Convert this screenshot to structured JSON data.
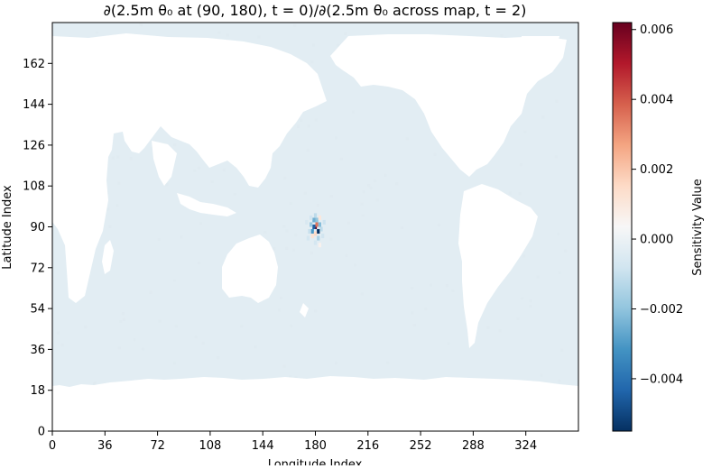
{
  "chart_data": {
    "type": "heatmap",
    "title": "∂(2.5m θ₀ at (90, 180), t = 0)/∂(2.5m θ₀ across map, t = 2)",
    "xlabel": "Longitude Index",
    "ylabel": "Latitude Index",
    "xlim": [
      0,
      360
    ],
    "ylim": [
      0,
      180
    ],
    "xticks": [
      0,
      36,
      72,
      108,
      144,
      180,
      216,
      252,
      288,
      324
    ],
    "yticks": [
      0,
      18,
      36,
      54,
      72,
      90,
      108,
      126,
      144,
      162
    ],
    "colorbar": {
      "label": "Sensitivity Value",
      "colormap": "RdBu_r",
      "vmin": -0.0055,
      "vmax": 0.0062,
      "ticks": [
        -0.004,
        -0.002,
        0.0,
        0.002,
        0.004,
        0.006
      ],
      "tick_labels": [
        "−0.004",
        "−0.002",
        "0.000",
        "0.002",
        "0.004",
        "0.006"
      ]
    },
    "ocean_background_value": -0.0003,
    "land_value": "masked (white)",
    "hotspot_center": [
      180,
      90
    ],
    "hotspot_cells": [
      {
        "x": 180,
        "y": 90,
        "v": 0.0062
      },
      {
        "x": 181,
        "y": 91,
        "v": 0.0035
      },
      {
        "x": 179,
        "y": 90,
        "v": -0.0045
      },
      {
        "x": 182,
        "y": 88,
        "v": -0.0055
      },
      {
        "x": 178,
        "y": 88,
        "v": -0.003
      },
      {
        "x": 179,
        "y": 93,
        "v": -0.0025
      },
      {
        "x": 181,
        "y": 93,
        "v": -0.002
      },
      {
        "x": 183,
        "y": 91,
        "v": -0.0022
      },
      {
        "x": 177,
        "y": 91,
        "v": -0.0018
      },
      {
        "x": 180,
        "y": 87,
        "v": 0.0015
      },
      {
        "x": 182,
        "y": 85,
        "v": -0.0015
      },
      {
        "x": 178,
        "y": 86,
        "v": 0.0012
      },
      {
        "x": 184,
        "y": 89,
        "v": -0.0012
      },
      {
        "x": 176,
        "y": 88,
        "v": -0.001
      },
      {
        "x": 180,
        "y": 95,
        "v": -0.0012
      },
      {
        "x": 183,
        "y": 94,
        "v": 0.001
      },
      {
        "x": 177,
        "y": 94,
        "v": -0.0008
      },
      {
        "x": 185,
        "y": 86,
        "v": -0.0008
      },
      {
        "x": 175,
        "y": 85,
        "v": -0.0007
      },
      {
        "x": 186,
        "y": 92,
        "v": -0.0009
      },
      {
        "x": 174,
        "y": 92,
        "v": -0.0006
      },
      {
        "x": 180,
        "y": 83,
        "v": -0.0007
      },
      {
        "x": 183,
        "y": 82,
        "v": 0.0006
      }
    ]
  }
}
